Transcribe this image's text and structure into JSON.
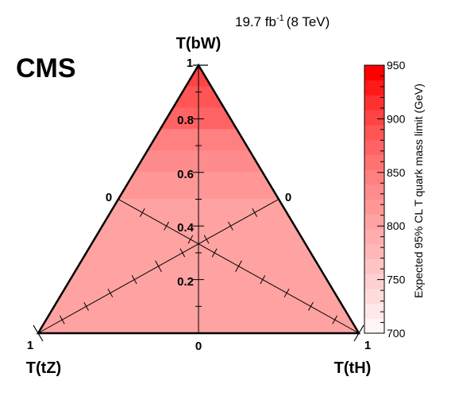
{
  "chart_data": {
    "type": "heatmap",
    "subtype": "ternary",
    "experiment_label": "CMS",
    "luminosity": {
      "value": "19.7 fb",
      "exponent": "-1",
      "energy": "(8 TeV)"
    },
    "vertex_labels": {
      "top": "T(bW)",
      "left": "T(tZ)",
      "right": "T(tH)"
    },
    "vertex_values": {
      "top": "1",
      "left": "1",
      "right": "1",
      "left_edge_mid": "0",
      "right_edge_mid": "0",
      "bottom_mid": "0"
    },
    "vertical_axis_ticks": [
      "0.2",
      "0.4",
      "0.6",
      "0.8"
    ],
    "colorbar": {
      "title": "Expected 95% CL T quark mass limit (GeV)",
      "range": [
        700,
        950
      ],
      "ticks": [
        "700",
        "750",
        "800",
        "850",
        "900",
        "950"
      ],
      "colors": [
        "#fff5f5",
        "#ffe8e8",
        "#ffdcdc",
        "#ffd0d0",
        "#ffc4c4",
        "#ffb8b8",
        "#ffadad",
        "#ffa2a2",
        "#ff9797",
        "#ff8c8c",
        "#ff8080",
        "#ff7272",
        "#ff6464",
        "#ff5555",
        "#ff4444",
        "#ff3030",
        "#ff1a1a",
        "#ff0000"
      ]
    },
    "contours": [
      {
        "bw_min": 0.92,
        "bw_max": 1.0,
        "mass": 900
      },
      {
        "bw_min": 0.84,
        "bw_max": 0.92,
        "mass": 885
      },
      {
        "bw_min": 0.76,
        "bw_max": 0.84,
        "mass": 868
      },
      {
        "bw_min": 0.68,
        "bw_max": 0.76,
        "mass": 850
      },
      {
        "bw_min": 0.6,
        "bw_max": 0.68,
        "mass": 835
      },
      {
        "bw_min": 0.5,
        "bw_max": 0.6,
        "mass": 820
      },
      {
        "bw_min": 0.3,
        "bw_max": 0.5,
        "mass": 805
      },
      {
        "bw_min": 0.0,
        "bw_max": 0.3,
        "mass": 800
      }
    ]
  }
}
